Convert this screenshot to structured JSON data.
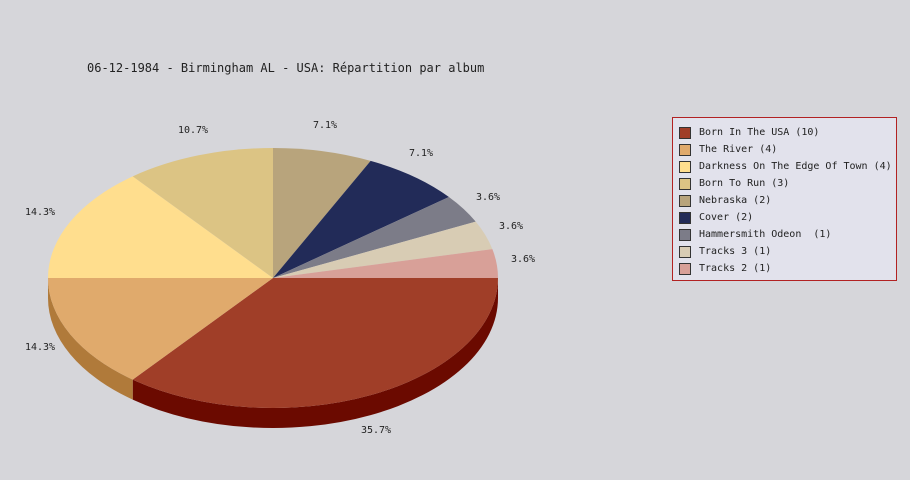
{
  "chart_data": {
    "type": "pie",
    "title": "06-12-1984 - Birmingham AL - USA:  Répartition par album",
    "legend_position": "right",
    "slices": [
      {
        "label": "Born In The USA (10)",
        "value": 10,
        "pct_label": "35.7%",
        "color": "#a03e28",
        "side": "#6b0a00"
      },
      {
        "label": "The River (4)",
        "value": 4,
        "pct_label": "14.3%",
        "color": "#e0aa6c",
        "side": "#b07a3a"
      },
      {
        "label": "Darkness On The Edge Of Town (4)",
        "value": 4,
        "pct_label": "14.3%",
        "color": "#ffde8e",
        "side": "#c8a860"
      },
      {
        "label": "Born To Run (3)",
        "value": 3,
        "pct_label": "10.7%",
        "color": "#dcc484",
        "side": "#a89050"
      },
      {
        "label": "Nebraska (2)",
        "value": 2,
        "pct_label": "7.1%",
        "color": "#b8a47c",
        "side": "#887450"
      },
      {
        "label": "Cover (2)",
        "value": 2,
        "pct_label": "7.1%",
        "color": "#222b58",
        "side": "#10143a"
      },
      {
        "label": "Hammersmith Odeon  (1)",
        "value": 1,
        "pct_label": "3.6%",
        "color": "#7c7c88",
        "side": "#50505a"
      },
      {
        "label": "Tracks 3 (1)",
        "value": 1,
        "pct_label": "3.6%",
        "color": "#d8ccb4",
        "side": "#a89c84"
      },
      {
        "label": "Tracks 2 (1)",
        "value": 1,
        "pct_label": "3.6%",
        "color": "#d8a098",
        "side": "#a87068"
      }
    ]
  }
}
